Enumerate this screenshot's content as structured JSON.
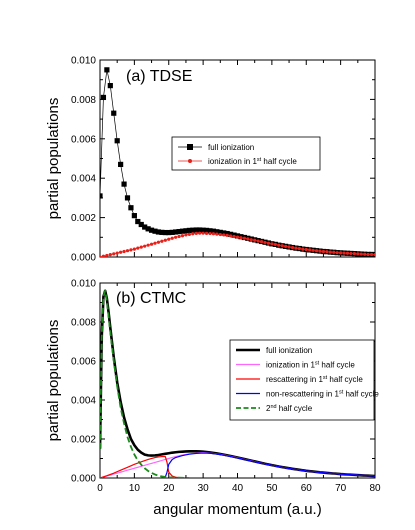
{
  "chart_data": [
    {
      "type": "line",
      "title": "(a) TDSE",
      "xlabel": "",
      "ylabel": "partial populations",
      "xlim": [
        0,
        80
      ],
      "ylim": [
        0,
        0.01
      ],
      "xticks": [],
      "yticks": [
        0.0,
        0.002,
        0.004,
        0.006,
        0.008,
        0.01
      ],
      "ytick_labels": [
        "0.000",
        "0.002",
        "0.004",
        "0.006",
        "0.008",
        "0.010"
      ],
      "legend_position": "upper-right",
      "series": [
        {
          "name": "full ionization",
          "color": "#000000",
          "marker": "square",
          "x": [
            0,
            1,
            2,
            3,
            4,
            5,
            6,
            7,
            8,
            9,
            10,
            11,
            12,
            13,
            14,
            15,
            16,
            17,
            18,
            19,
            20,
            21,
            22,
            23,
            24,
            25,
            26,
            27,
            28,
            29,
            30,
            31,
            32,
            33,
            34,
            35,
            36,
            37,
            38,
            39,
            40,
            41,
            42,
            43,
            44,
            45,
            46,
            47,
            48,
            49,
            50,
            51,
            52,
            53,
            54,
            55,
            56,
            57,
            58,
            59,
            60,
            61,
            62,
            63,
            64,
            65,
            66,
            67,
            68,
            69,
            70,
            71,
            72,
            73,
            74,
            75,
            76,
            77,
            78,
            79,
            80
          ],
          "y": [
            0.0031,
            0.0081,
            0.0095,
            0.0087,
            0.0073,
            0.0059,
            0.0047,
            0.0037,
            0.003,
            0.0025,
            0.0021,
            0.0018,
            0.00165,
            0.00152,
            0.00143,
            0.00136,
            0.00131,
            0.00127,
            0.00125,
            0.00124,
            0.00124,
            0.00125,
            0.00127,
            0.00129,
            0.00131,
            0.00133,
            0.00135,
            0.00136,
            0.00137,
            0.00137,
            0.00136,
            0.00135,
            0.00133,
            0.00131,
            0.00128,
            0.00125,
            0.00122,
            0.00119,
            0.00115,
            0.00111,
            0.00107,
            0.00103,
            0.00099,
            0.00095,
            0.00091,
            0.00087,
            0.00083,
            0.00079,
            0.00075,
            0.00071,
            0.00067,
            0.00064,
            0.0006,
            0.00057,
            0.00054,
            0.00051,
            0.00048,
            0.00045,
            0.00043,
            0.0004,
            0.00038,
            0.00036,
            0.00034,
            0.00032,
            0.0003,
            0.00028,
            0.00027,
            0.00025,
            0.00024,
            0.00022,
            0.00021,
            0.0002,
            0.00019,
            0.00018,
            0.00017,
            0.00016,
            0.00015,
            0.00014,
            0.00013,
            0.00013,
            0.00012
          ]
        },
        {
          "name": "ionization in 1st half cycle",
          "name_parts": [
            "ionization in 1",
            "st",
            " half cycle"
          ],
          "color": "#e8201a",
          "marker": "dot",
          "x": [
            0,
            1,
            2,
            3,
            4,
            5,
            6,
            7,
            8,
            9,
            10,
            11,
            12,
            13,
            14,
            15,
            16,
            17,
            18,
            19,
            20,
            21,
            22,
            23,
            24,
            25,
            26,
            27,
            28,
            29,
            30,
            31,
            32,
            33,
            34,
            35,
            36,
            37,
            38,
            39,
            40,
            41,
            42,
            43,
            44,
            45,
            46,
            47,
            48,
            49,
            50,
            51,
            52,
            53,
            54,
            55,
            56,
            57,
            58,
            59,
            60,
            61,
            62,
            63,
            64,
            65,
            66,
            67,
            68,
            69,
            70,
            71,
            72,
            73,
            74,
            75,
            76,
            77,
            78,
            79,
            80
          ],
          "y": [
            0.0,
            4e-05,
            8e-05,
            0.00012,
            0.00016,
            0.0002,
            0.00024,
            0.00028,
            0.00032,
            0.00036,
            0.0004,
            0.00045,
            0.0005,
            0.00055,
            0.0006,
            0.00065,
            0.0007,
            0.00075,
            0.0008,
            0.00085,
            0.0009,
            0.00095,
            0.001,
            0.00104,
            0.00108,
            0.00112,
            0.00115,
            0.00118,
            0.0012,
            0.00121,
            0.00121,
            0.0012,
            0.00119,
            0.00118,
            0.00116,
            0.00114,
            0.00112,
            0.0011,
            0.00107,
            0.00104,
            0.00101,
            0.00098,
            0.00095,
            0.00092,
            0.00088,
            0.00085,
            0.00081,
            0.00078,
            0.00074,
            0.0007,
            0.00067,
            0.00064,
            0.0006,
            0.00057,
            0.00054,
            0.00051,
            0.00048,
            0.00045,
            0.00043,
            0.0004,
            0.00038,
            0.00036,
            0.00034,
            0.00032,
            0.0003,
            0.00028,
            0.00027,
            0.00025,
            0.00024,
            0.00022,
            0.00021,
            0.0002,
            0.00019,
            0.00018,
            0.00017,
            0.00016,
            0.00015,
            0.00014,
            0.00013,
            0.00013,
            0.00012
          ]
        }
      ]
    },
    {
      "type": "line",
      "title": "(b) CTMC",
      "xlabel": "angular momentum (a.u.)",
      "ylabel": "partial populations",
      "xlim": [
        0,
        80
      ],
      "ylim": [
        0,
        0.01
      ],
      "xticks": [
        0,
        10,
        20,
        30,
        40,
        50,
        60,
        70,
        80
      ],
      "xtick_labels": [
        "0",
        "10",
        "20",
        "30",
        "40",
        "50",
        "60",
        "70",
        "80"
      ],
      "yticks": [
        0.0,
        0.002,
        0.004,
        0.006,
        0.008,
        0.01
      ],
      "ytick_labels": [
        "0.000",
        "0.002",
        "0.004",
        "0.006",
        "0.008",
        "0.010"
      ],
      "legend_position": "upper-right",
      "series": [
        {
          "name": "full ionization",
          "color": "#000000",
          "style": "thick",
          "x": [
            0,
            0.5,
            1,
            1.5,
            2,
            2.5,
            3,
            4,
            5,
            6,
            7,
            8,
            9,
            10,
            11,
            12,
            13,
            14,
            15,
            16,
            17,
            18,
            19,
            20,
            21,
            22,
            23,
            24,
            25,
            26,
            27,
            28,
            29,
            30,
            32,
            34,
            36,
            38,
            40,
            42,
            44,
            46,
            48,
            50,
            52,
            54,
            56,
            58,
            60,
            62,
            64,
            66,
            68,
            70,
            72,
            74,
            76,
            78,
            80
          ],
          "y": [
            0.0015,
            0.0072,
            0.0093,
            0.0096,
            0.0092,
            0.0085,
            0.0077,
            0.0062,
            0.0049,
            0.0039,
            0.0031,
            0.0025,
            0.002,
            0.00168,
            0.00145,
            0.0013,
            0.0012,
            0.00116,
            0.00115,
            0.00116,
            0.00118,
            0.00121,
            0.00124,
            0.00127,
            0.0013,
            0.00132,
            0.00134,
            0.00135,
            0.00136,
            0.00137,
            0.00137,
            0.00137,
            0.00136,
            0.00135,
            0.00131,
            0.00126,
            0.0012,
            0.00113,
            0.00105,
            0.00097,
            0.00089,
            0.00081,
            0.00073,
            0.00066,
            0.00059,
            0.00053,
            0.00047,
            0.00042,
            0.00037,
            0.00033,
            0.00029,
            0.00026,
            0.00023,
            0.0002,
            0.00018,
            0.00016,
            0.00014,
            0.00012,
            0.0001
          ]
        },
        {
          "name": "ionization in 1st half cycle",
          "name_parts": [
            "ionization in 1",
            "st",
            " half cycle"
          ],
          "color": "#ff66ff",
          "style": "thin",
          "x": [
            0,
            2,
            4,
            6,
            8,
            10,
            12,
            14,
            16,
            18,
            19,
            20,
            22,
            24,
            26,
            28,
            30,
            32,
            34,
            36,
            38,
            40,
            42,
            44,
            46,
            48,
            50,
            52,
            54,
            56,
            58,
            60,
            62,
            64,
            66,
            68,
            70,
            72,
            74,
            76,
            78,
            80
          ],
          "y": [
            0.0,
            0.0001,
            0.0002,
            0.0003,
            0.0004,
            0.0005,
            0.0006,
            0.0007,
            0.0008,
            0.0009,
            0.00095,
            0.001,
            0.0011,
            0.00118,
            0.00124,
            0.00128,
            0.0013,
            0.00128,
            0.00124,
            0.00118,
            0.00111,
            0.00104,
            0.00096,
            0.00088,
            0.0008,
            0.00072,
            0.00065,
            0.00058,
            0.00052,
            0.00046,
            0.00041,
            0.00036,
            0.00032,
            0.00029,
            0.00026,
            0.00023,
            0.0002,
            0.00018,
            0.00016,
            0.00014,
            0.00012,
            0.0001
          ]
        },
        {
          "name": "rescattering in 1st half cycle",
          "name_parts": [
            "rescattering in 1",
            "st",
            " half cycle"
          ],
          "color": "#ff0000",
          "style": "thin",
          "x": [
            0,
            2,
            4,
            6,
            8,
            10,
            12,
            14,
            16,
            17,
            18,
            19,
            19.5,
            20,
            21,
            22,
            24
          ],
          "y": [
            0.0,
            0.00012,
            0.00025,
            0.0004,
            0.00055,
            0.0007,
            0.00083,
            0.00095,
            0.00105,
            0.00108,
            0.0011,
            0.0011,
            0.0008,
            0.0003,
            0.0001,
            4e-05,
            0.0
          ]
        },
        {
          "name": "non-rescattering in 1st half cycle",
          "name_parts": [
            "non-rescattering in 1",
            "st",
            " half cycle"
          ],
          "color": "#0000ff",
          "style": "thin",
          "x": [
            18,
            19,
            19.5,
            20,
            21,
            22,
            24,
            26,
            28,
            30,
            32,
            34,
            36,
            38,
            40,
            42,
            44,
            46,
            48,
            50,
            52,
            54,
            56,
            58,
            60,
            62,
            64,
            66,
            68,
            70,
            72,
            74,
            76,
            78,
            80
          ],
          "y": [
            0.0,
            5e-05,
            0.0003,
            0.0007,
            0.00095,
            0.00105,
            0.00115,
            0.00122,
            0.00126,
            0.00128,
            0.00127,
            0.00123,
            0.00117,
            0.0011,
            0.00103,
            0.00095,
            0.00087,
            0.00079,
            0.00072,
            0.00065,
            0.00058,
            0.00052,
            0.00046,
            0.00041,
            0.00036,
            0.00032,
            0.00029,
            0.00026,
            0.00023,
            0.0002,
            0.00018,
            0.00016,
            0.00014,
            0.00012,
            0.0001
          ]
        },
        {
          "name": "2nd half cycle",
          "name_parts": [
            "2",
            "nd",
            " half cycle"
          ],
          "color": "#1a8a1a",
          "style": "dashed",
          "x": [
            0,
            0.5,
            1,
            1.5,
            2,
            2.5,
            3,
            4,
            5,
            6,
            7,
            8,
            9,
            10,
            11,
            12,
            13,
            14,
            15,
            16,
            17,
            18,
            19,
            20,
            22,
            24,
            26
          ],
          "y": [
            0.0015,
            0.0072,
            0.0093,
            0.0096,
            0.0091,
            0.0083,
            0.0075,
            0.006,
            0.0047,
            0.0036,
            0.0028,
            0.0021,
            0.0016,
            0.0012,
            0.0009,
            0.00068,
            0.0005,
            0.00036,
            0.00026,
            0.00018,
            0.00012,
            8e-05,
            5e-05,
            3e-05,
            2e-05,
            1e-05,
            0.0
          ]
        }
      ]
    }
  ]
}
